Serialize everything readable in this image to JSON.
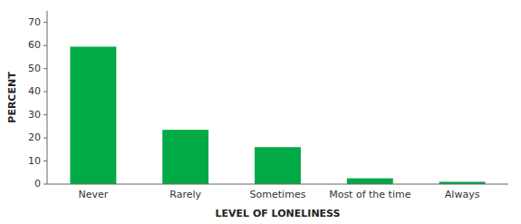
{
  "chart_data": {
    "type": "bar",
    "categories": [
      "Never",
      "Rarely",
      "Sometimes",
      "Most of the time",
      "Always"
    ],
    "values": [
      59.5,
      23.5,
      16.0,
      2.5,
      1.0
    ],
    "color": "#00aa44",
    "xlabel": "LEVEL OF LONELINESS",
    "ylabel": "PERCENT",
    "ylim": [
      0,
      75
    ],
    "yticks": [
      0,
      10,
      20,
      30,
      40,
      50,
      60,
      70
    ],
    "grid": false
  }
}
